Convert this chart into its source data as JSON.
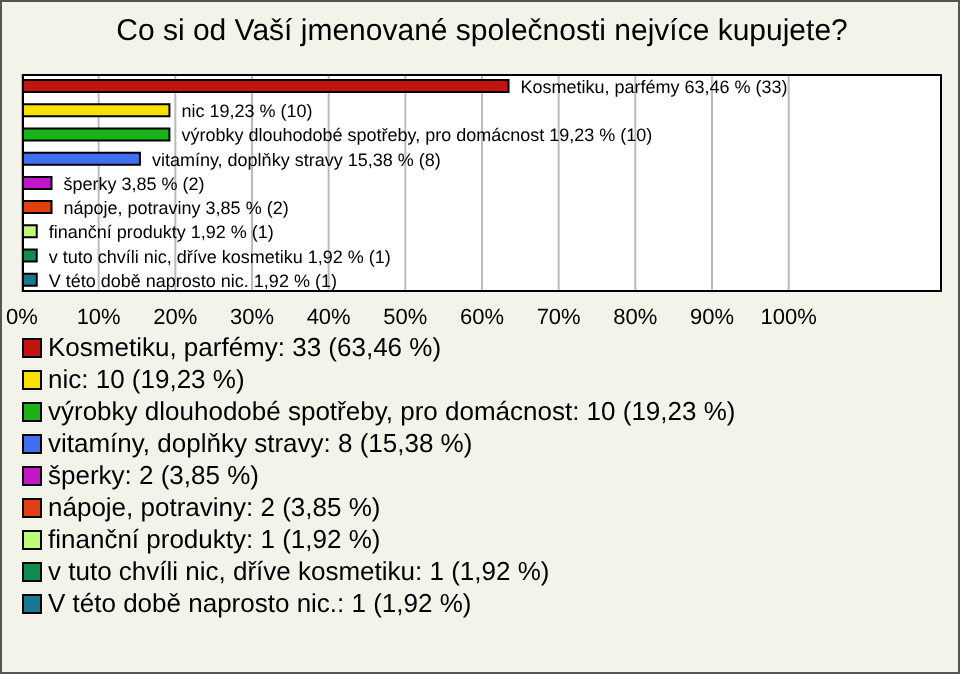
{
  "chart_data": {
    "type": "bar",
    "orientation": "horizontal",
    "title": "Co si od Vaší jmenované společnosti nejvíce kupujete?",
    "categories": [
      "Kosmetiku, parfémy",
      "nic",
      "výrobky dlouhodobé spotřeby, pro domácnost",
      "vitamíny, doplňky stravy",
      "šperky",
      "nápoje, potraviny",
      "finanční produkty",
      "v tuto chvíli nic, dříve kosmetiku",
      "V této době naprosto nic."
    ],
    "values": [
      63.46,
      19.23,
      19.23,
      15.38,
      3.85,
      3.85,
      1.92,
      1.92,
      1.92
    ],
    "value_labels": [
      "63,46 % (33)",
      "19,23 % (10)",
      "19,23 % (10)",
      "15,38 % (8)",
      "3,85 % (2)",
      "3,85 % (2)",
      "1,92 % (1)",
      "1,92 % (1)",
      "1,92 % (1)"
    ],
    "colors": [
      "#c0140c",
      "#f8e000",
      "#18b418",
      "#4070f0",
      "#c018c8",
      "#e04010",
      "#c0f878",
      "#108c50",
      "#187890"
    ],
    "xlim": [
      0,
      120
    ],
    "xticks": [
      {
        "value": 0,
        "label": "0%"
      },
      {
        "value": 10,
        "label": "10%"
      },
      {
        "value": 20,
        "label": "20%"
      },
      {
        "value": 30,
        "label": "30%"
      },
      {
        "value": 40,
        "label": "40%"
      },
      {
        "value": 50,
        "label": "50%"
      },
      {
        "value": 60,
        "label": "60%"
      },
      {
        "value": 70,
        "label": "70%"
      },
      {
        "value": 80,
        "label": "80%"
      },
      {
        "value": 90,
        "label": "90%"
      },
      {
        "value": 100,
        "label": "100%"
      }
    ],
    "grid": "x",
    "annotations": [
      "Kosmetiku, parfémy: 33 (63,46 %)",
      "nic: 10 (19,23 %)",
      "výrobky dlouhodobé spotřeby, pro domácnost: 10 (19,23 %)",
      "vitamíny, doplňky stravy: 8 (15,38 %)",
      "šperky: 2 (3,85 %)",
      "nápoje, potraviny: 2 (3,85 %)",
      "finanční produkty: 1 (1,92 %)",
      "v tuto chvíli nic, dříve kosmetiku: 1 (1,92 %)",
      "V této době naprosto nic.: 1 (1,92 %)"
    ]
  }
}
